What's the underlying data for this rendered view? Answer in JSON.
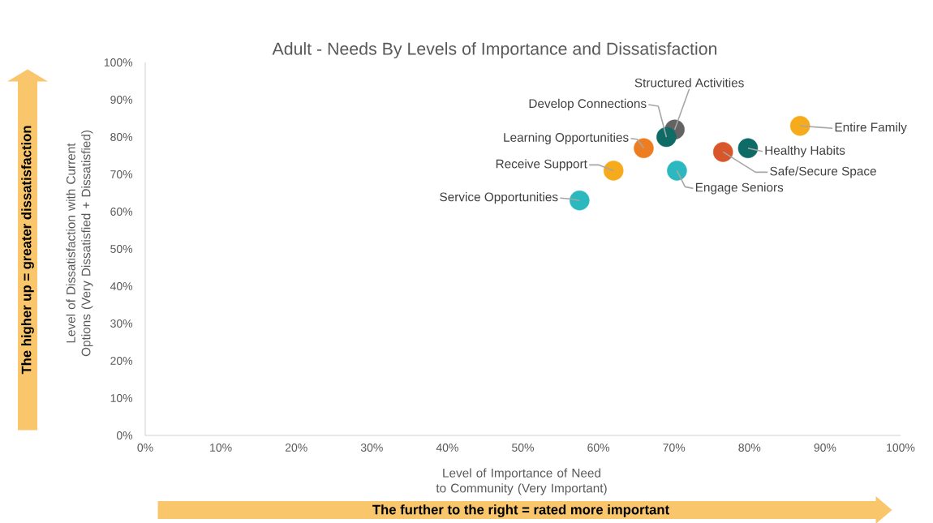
{
  "chart_data": {
    "type": "scatter",
    "title": "Adult - Needs By Levels of Importance and Dissatisfaction",
    "xlabel": "Level of Importance of Need to Community (Very Important)",
    "ylabel": "Level of Dissatisfaction with Current Options (Very Dissatisfied + Dissatisfied)",
    "x": [
      70.1,
      69,
      66,
      62,
      57.5,
      70.4,
      76.5,
      79.8,
      86.7
    ],
    "values": [
      82,
      80,
      77,
      71,
      63,
      71,
      76,
      77,
      83
    ],
    "colors": [
      "#636363",
      "#0e6b66",
      "#ee7d22",
      "#f6ab1d",
      "#2bb8bf",
      "#2bb8bf",
      "#d9552a",
      "#0e6b66",
      "#f6ab1d"
    ],
    "xlim": [
      0,
      100
    ],
    "ylim": [
      0,
      100
    ],
    "xticks": [
      {
        "value": 0,
        "label": "0%"
      },
      {
        "value": 10,
        "label": "10%"
      },
      {
        "value": 20,
        "label": "20%"
      },
      {
        "value": 30,
        "label": "30%"
      },
      {
        "value": 40,
        "label": "40%"
      },
      {
        "value": 50,
        "label": "50%"
      },
      {
        "value": 60,
        "label": "60%"
      },
      {
        "value": 70,
        "label": "70%"
      },
      {
        "value": 80,
        "label": "80%"
      },
      {
        "value": 90,
        "label": "90%"
      },
      {
        "value": 100,
        "label": "100%"
      }
    ],
    "yticks": [
      {
        "value": 0,
        "label": "0%"
      },
      {
        "value": 10,
        "label": "10%"
      },
      {
        "value": 20,
        "label": "20%"
      },
      {
        "value": 30,
        "label": "30%"
      },
      {
        "value": 40,
        "label": "40%"
      },
      {
        "value": 50,
        "label": "50%"
      },
      {
        "value": 60,
        "label": "60%"
      },
      {
        "value": 70,
        "label": "70%"
      },
      {
        "value": 80,
        "label": "80%"
      },
      {
        "value": 90,
        "label": "90%"
      },
      {
        "value": 100,
        "label": "100%"
      }
    ],
    "annotations": [
      {
        "text": "Structured Activities",
        "x": 70.1,
        "y": 82
      },
      {
        "text": "Develop Connections",
        "x": 69,
        "y": 80
      },
      {
        "text": "Learning Opportunities",
        "x": 66,
        "y": 77
      },
      {
        "text": "Receive Support",
        "x": 62,
        "y": 71
      },
      {
        "text": "Service Opportunities",
        "x": 57.5,
        "y": 63
      },
      {
        "text": "Engage Seniors",
        "x": 70.4,
        "y": 71
      },
      {
        "text": "Safe/Secure Space",
        "x": 76.5,
        "y": 76
      },
      {
        "text": "Healthy Habits",
        "x": 79.8,
        "y": 77
      },
      {
        "text": "Entire Family",
        "x": 86.7,
        "y": 83
      },
      "The higher up = greater dissatisfaction",
      "The further to the right = rated more important"
    ]
  }
}
